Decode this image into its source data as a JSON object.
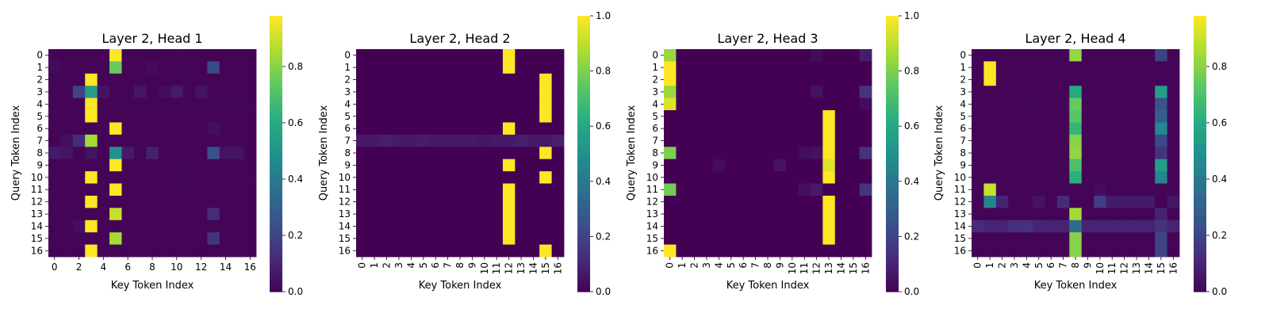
{
  "chart_data": [
    {
      "type": "heatmap",
      "title": "Layer 2, Head 1",
      "xlabel": "Key Token Index",
      "ylabel": "Query Token Index",
      "x_ticks": [
        "0",
        "2",
        "4",
        "6",
        "8",
        "10",
        "12",
        "14",
        "16"
      ],
      "x_ticks_rotated": false,
      "y_ticks": [
        "0",
        "1",
        "2",
        "3",
        "4",
        "5",
        "6",
        "7",
        "8",
        "9",
        "10",
        "11",
        "12",
        "13",
        "14",
        "15",
        "16"
      ],
      "colorbar": {
        "vmin": 0,
        "vmax": 0.98,
        "ticks": [
          "0.0",
          "0.2",
          "0.4",
          "0.6",
          "0.8"
        ]
      },
      "colormap": "viridis",
      "sparse": true,
      "background": 0.01,
      "cells": [
        [
          0,
          5,
          0.98
        ],
        [
          1,
          5,
          0.75
        ],
        [
          1,
          13,
          0.22
        ],
        [
          1,
          0,
          0.03
        ],
        [
          1,
          8,
          0.03
        ],
        [
          2,
          3,
          0.98
        ],
        [
          3,
          2,
          0.2
        ],
        [
          3,
          3,
          0.55
        ],
        [
          3,
          4,
          0.05
        ],
        [
          3,
          7,
          0.06
        ],
        [
          3,
          10,
          0.07
        ],
        [
          3,
          12,
          0.05
        ],
        [
          3,
          9,
          0.03
        ],
        [
          4,
          3,
          0.98
        ],
        [
          5,
          3,
          0.98
        ],
        [
          6,
          5,
          0.98
        ],
        [
          6,
          13,
          0.04
        ],
        [
          7,
          3,
          0.85
        ],
        [
          7,
          2,
          0.12
        ],
        [
          7,
          1,
          0.04
        ],
        [
          8,
          5,
          0.5
        ],
        [
          8,
          13,
          0.25
        ],
        [
          8,
          0,
          0.07
        ],
        [
          8,
          6,
          0.07
        ],
        [
          8,
          8,
          0.09
        ],
        [
          8,
          14,
          0.05
        ],
        [
          8,
          15,
          0.05
        ],
        [
          8,
          1,
          0.05
        ],
        [
          8,
          3,
          0.05
        ],
        [
          9,
          5,
          0.98
        ],
        [
          10,
          3,
          0.98
        ],
        [
          11,
          5,
          0.98
        ],
        [
          12,
          3,
          0.98
        ],
        [
          13,
          5,
          0.9
        ],
        [
          13,
          13,
          0.12
        ],
        [
          14,
          3,
          0.98
        ],
        [
          14,
          2,
          0.04
        ],
        [
          15,
          5,
          0.85
        ],
        [
          15,
          13,
          0.15
        ],
        [
          16,
          3,
          0.98
        ]
      ]
    },
    {
      "type": "heatmap",
      "title": "Layer 2, Head 2",
      "xlabel": "Key Token Index",
      "ylabel": "Query Token Index",
      "x_ticks": [
        "0",
        "1",
        "2",
        "3",
        "4",
        "5",
        "6",
        "7",
        "8",
        "9",
        "10",
        "11",
        "12",
        "13",
        "14",
        "15",
        "16"
      ],
      "x_ticks_rotated": true,
      "y_ticks": [
        "0",
        "1",
        "2",
        "3",
        "4",
        "5",
        "6",
        "7",
        "8",
        "9",
        "10",
        "11",
        "12",
        "13",
        "14",
        "15",
        "16"
      ],
      "colorbar": {
        "vmin": 0,
        "vmax": 1.0,
        "ticks": [
          "0.0",
          "0.2",
          "0.4",
          "0.6",
          "0.8",
          "1.0"
        ]
      },
      "colormap": "viridis",
      "sparse": true,
      "background": 0.0,
      "row_fill": [
        [
          7,
          0.07
        ]
      ],
      "cells": [
        [
          0,
          12,
          1.0
        ],
        [
          1,
          12,
          1.0
        ],
        [
          2,
          15,
          1.0
        ],
        [
          3,
          15,
          1.0
        ],
        [
          4,
          15,
          1.0
        ],
        [
          5,
          15,
          1.0
        ],
        [
          6,
          12,
          1.0
        ],
        [
          7,
          2,
          0.09
        ],
        [
          7,
          5,
          0.08
        ],
        [
          7,
          10,
          0.06
        ],
        [
          7,
          13,
          0.09
        ],
        [
          7,
          16,
          0.09
        ],
        [
          8,
          15,
          1.0
        ],
        [
          9,
          12,
          1.0
        ],
        [
          10,
          15,
          1.0
        ],
        [
          11,
          12,
          1.0
        ],
        [
          12,
          12,
          1.0
        ],
        [
          13,
          12,
          1.0
        ],
        [
          14,
          12,
          1.0
        ],
        [
          15,
          12,
          1.0
        ],
        [
          16,
          15,
          1.0
        ]
      ]
    },
    {
      "type": "heatmap",
      "title": "Layer 2, Head 3",
      "xlabel": "Key Token Index",
      "ylabel": "Query Token Index",
      "x_ticks": [
        "0",
        "1",
        "2",
        "3",
        "4",
        "5",
        "6",
        "7",
        "8",
        "9",
        "10",
        "11",
        "12",
        "13",
        "14",
        "15",
        "16"
      ],
      "x_ticks_rotated": true,
      "y_ticks": [
        "0",
        "1",
        "2",
        "3",
        "4",
        "5",
        "6",
        "7",
        "8",
        "9",
        "10",
        "11",
        "12",
        "13",
        "14",
        "15",
        "16"
      ],
      "colorbar": {
        "vmin": 0,
        "vmax": 1.0,
        "ticks": [
          "0.0",
          "0.2",
          "0.4",
          "0.6",
          "0.8",
          "1.0"
        ]
      },
      "colormap": "viridis",
      "sparse": true,
      "background": 0.0,
      "cells": [
        [
          0,
          0,
          0.85
        ],
        [
          0,
          16,
          0.08
        ],
        [
          0,
          12,
          0.03
        ],
        [
          1,
          0,
          1.0
        ],
        [
          2,
          0,
          1.0
        ],
        [
          3,
          0,
          0.85
        ],
        [
          3,
          16,
          0.15
        ],
        [
          3,
          12,
          0.05
        ],
        [
          4,
          0,
          0.95
        ],
        [
          4,
          16,
          0.03
        ],
        [
          5,
          13,
          1.0
        ],
        [
          6,
          13,
          1.0
        ],
        [
          7,
          13,
          1.0
        ],
        [
          8,
          0,
          0.8
        ],
        [
          8,
          13,
          1.0
        ],
        [
          8,
          16,
          0.15
        ],
        [
          8,
          12,
          0.05
        ],
        [
          8,
          11,
          0.03
        ],
        [
          9,
          13,
          0.95
        ],
        [
          9,
          9,
          0.05
        ],
        [
          9,
          4,
          0.03
        ],
        [
          10,
          13,
          1.0
        ],
        [
          11,
          0,
          0.78
        ],
        [
          11,
          16,
          0.15
        ],
        [
          11,
          12,
          0.07
        ],
        [
          11,
          11,
          0.04
        ],
        [
          12,
          13,
          1.0
        ],
        [
          13,
          13,
          1.0
        ],
        [
          14,
          13,
          1.0
        ],
        [
          15,
          13,
          1.0
        ],
        [
          16,
          0,
          1.0
        ]
      ]
    },
    {
      "type": "heatmap",
      "title": "Layer 2, Head 4",
      "xlabel": "Key Token Index",
      "ylabel": "Query Token Index",
      "x_ticks": [
        "0",
        "1",
        "2",
        "3",
        "4",
        "5",
        "6",
        "7",
        "8",
        "9",
        "10",
        "11",
        "12",
        "13",
        "14",
        "15",
        "16"
      ],
      "x_ticks_rotated": true,
      "y_ticks": [
        "0",
        "1",
        "2",
        "3",
        "4",
        "5",
        "6",
        "7",
        "8",
        "9",
        "10",
        "11",
        "12",
        "13",
        "14",
        "15",
        "16"
      ],
      "colorbar": {
        "vmin": 0,
        "vmax": 0.98,
        "ticks": [
          "0.0",
          "0.2",
          "0.4",
          "0.6",
          "0.8"
        ]
      },
      "colormap": "viridis",
      "sparse": true,
      "background": 0.01,
      "row_fill": [
        [
          14,
          0.1
        ]
      ],
      "cells": [
        [
          0,
          8,
          0.82
        ],
        [
          0,
          15,
          0.2
        ],
        [
          1,
          1,
          0.98
        ],
        [
          2,
          1,
          0.98
        ],
        [
          3,
          8,
          0.6
        ],
        [
          3,
          15,
          0.55
        ],
        [
          4,
          8,
          0.75
        ],
        [
          4,
          15,
          0.25
        ],
        [
          5,
          8,
          0.72
        ],
        [
          5,
          15,
          0.3
        ],
        [
          6,
          8,
          0.65
        ],
        [
          6,
          15,
          0.45
        ],
        [
          7,
          8,
          0.8
        ],
        [
          7,
          15,
          0.22
        ],
        [
          8,
          8,
          0.82
        ],
        [
          8,
          15,
          0.15
        ],
        [
          9,
          8,
          0.7
        ],
        [
          9,
          15,
          0.55
        ],
        [
          10,
          8,
          0.62
        ],
        [
          10,
          15,
          0.45
        ],
        [
          11,
          1,
          0.9
        ],
        [
          11,
          10,
          0.03
        ],
        [
          12,
          1,
          0.45
        ],
        [
          12,
          2,
          0.1
        ],
        [
          12,
          5,
          0.05
        ],
        [
          12,
          7,
          0.12
        ],
        [
          12,
          10,
          0.18
        ],
        [
          12,
          11,
          0.07
        ],
        [
          12,
          12,
          0.07
        ],
        [
          12,
          13,
          0.07
        ],
        [
          12,
          14,
          0.07
        ],
        [
          12,
          16,
          0.06
        ],
        [
          13,
          8,
          0.85
        ],
        [
          13,
          15,
          0.1
        ],
        [
          14,
          8,
          0.35
        ],
        [
          14,
          15,
          0.15
        ],
        [
          14,
          0,
          0.12
        ],
        [
          14,
          3,
          0.14
        ],
        [
          14,
          4,
          0.14
        ],
        [
          15,
          8,
          0.8
        ],
        [
          15,
          15,
          0.2
        ],
        [
          16,
          8,
          0.8
        ],
        [
          16,
          15,
          0.2
        ]
      ]
    }
  ]
}
